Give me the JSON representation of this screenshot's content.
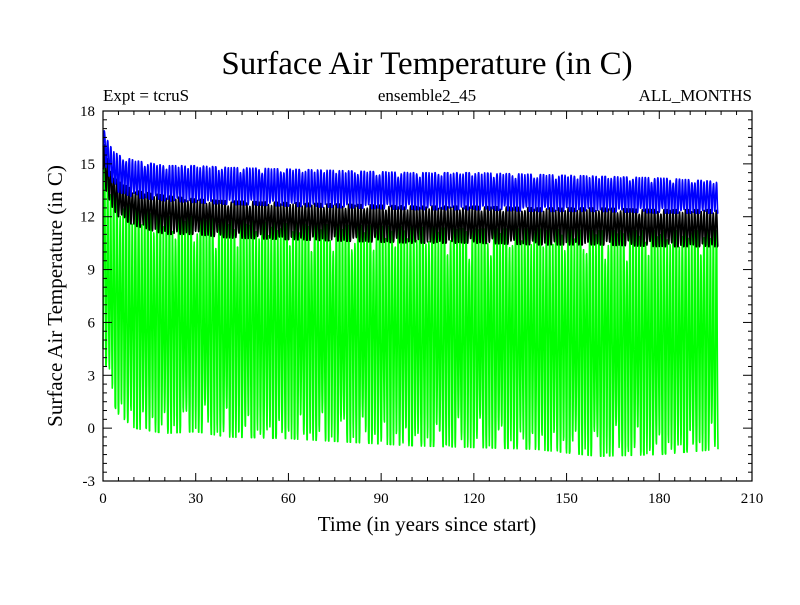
{
  "chart_data": {
    "type": "line",
    "title": "Surface Air Temperature (in C)",
    "subtitle_left": "Expt = tcruS",
    "subtitle_center": "ensemble2_45",
    "subtitle_right": "ALL_MONTHS",
    "xlabel": "Time (in years since start)",
    "ylabel": "Surface Air Temperature (in C)",
    "xlim": [
      0,
      210
    ],
    "ylim": [
      -3,
      18
    ],
    "x_ticks": [
      0,
      30,
      60,
      90,
      120,
      150,
      180,
      210
    ],
    "y_ticks": [
      -3,
      0,
      3,
      6,
      9,
      12,
      15,
      18
    ],
    "grid": false,
    "data_x_range": [
      0,
      199
    ],
    "sampling": "monthly",
    "series": [
      {
        "color": "#00ff00",
        "style": "monthly oscillation envelope",
        "x": [
          0,
          1,
          3,
          5,
          10,
          20,
          30,
          40,
          60,
          80,
          100,
          120,
          140,
          160,
          180,
          199
        ],
        "min": [
          4.5,
          3.5,
          1.5,
          0.8,
          0.0,
          -0.3,
          -0.2,
          -0.5,
          -0.6,
          -0.8,
          -1.0,
          -1.1,
          -1.2,
          -1.6,
          -1.5,
          -1.2
        ],
        "max": [
          16.0,
          14.5,
          13.5,
          13.0,
          12.5,
          12.0,
          12.0,
          11.8,
          11.6,
          11.5,
          11.4,
          11.3,
          11.3,
          11.2,
          11.2,
          11.2
        ]
      },
      {
        "color": "#000000",
        "style": "monthly oscillation envelope",
        "x": [
          0,
          1,
          3,
          5,
          10,
          20,
          30,
          40,
          60,
          80,
          100,
          120,
          140,
          160,
          180,
          199
        ],
        "min": [
          14.5,
          13.5,
          12.5,
          12.0,
          11.5,
          11.0,
          11.0,
          10.8,
          10.7,
          10.6,
          10.5,
          10.5,
          10.4,
          10.4,
          10.3,
          10.3
        ],
        "max": [
          16.5,
          15.5,
          14.5,
          14.0,
          13.5,
          13.2,
          13.0,
          12.9,
          12.8,
          12.7,
          12.6,
          12.6,
          12.5,
          12.5,
          12.4,
          12.4
        ]
      },
      {
        "color": "#0000ff",
        "style": "monthly oscillation envelope",
        "x": [
          0,
          1,
          3,
          5,
          10,
          20,
          30,
          40,
          60,
          80,
          100,
          120,
          140,
          160,
          180,
          199
        ],
        "min": [
          16.0,
          14.8,
          13.8,
          13.4,
          13.1,
          12.9,
          12.8,
          12.7,
          12.6,
          12.5,
          12.4,
          12.4,
          12.3,
          12.3,
          12.2,
          12.2
        ],
        "max": [
          17.5,
          16.5,
          15.8,
          15.5,
          15.2,
          14.9,
          14.9,
          14.8,
          14.7,
          14.6,
          14.5,
          14.5,
          14.4,
          14.3,
          14.2,
          14.0
        ]
      }
    ]
  }
}
